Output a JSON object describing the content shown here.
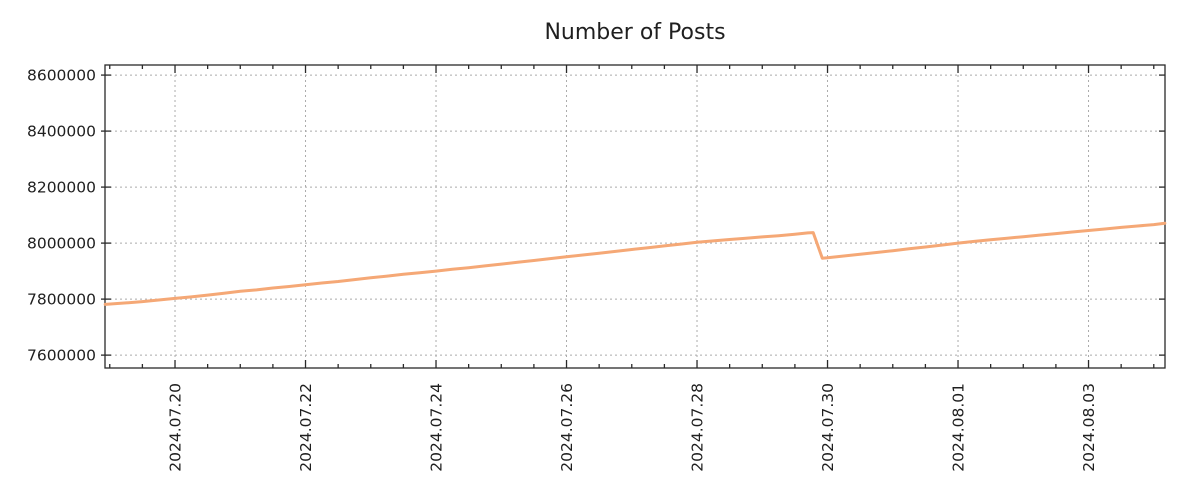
{
  "chart_data": {
    "type": "line",
    "title": "Number of Posts",
    "legend": "none",
    "grid": "dashed",
    "colors": {
      "line": "#f5a876",
      "grid": "#ababab",
      "axis": "#2a2a2a",
      "text": "#1f1f1f",
      "background": "#ffffff"
    },
    "axes": {
      "x": {
        "tick_labels": [
          "2024.07.20",
          "2024.07.22",
          "2024.07.24",
          "2024.07.26",
          "2024.07.28",
          "2024.07.30",
          "2024.08.01",
          "2024.08.03"
        ],
        "tick_day_index": [
          0,
          2,
          4,
          6,
          8,
          10,
          12,
          14
        ],
        "minor_tick_step_days": 0.5,
        "range_day_index": [
          -1.073,
          15.172
        ],
        "label_rotation_deg": -90
      },
      "y": {
        "tick_labels": [
          "7600000",
          "7800000",
          "8000000",
          "8200000",
          "8400000",
          "8600000"
        ],
        "tick_values": [
          7600000,
          7800000,
          8000000,
          8200000,
          8400000,
          8600000
        ],
        "range": [
          7554000,
          8636000
        ]
      }
    },
    "series": [
      {
        "name": "number-of-posts",
        "color": "#f5a876",
        "line_width": 3,
        "points": [
          [
            -1.07,
            7781000
          ],
          [
            -0.75,
            7786500
          ],
          [
            -0.5,
            7791000
          ],
          [
            -0.25,
            7797000
          ],
          [
            0,
            7802500
          ],
          [
            0.25,
            7808000
          ],
          [
            0.5,
            7814500
          ],
          [
            0.75,
            7821000
          ],
          [
            1,
            7828000
          ],
          [
            1.25,
            7833000
          ],
          [
            1.5,
            7839500
          ],
          [
            1.75,
            7845000
          ],
          [
            2,
            7851000
          ],
          [
            2.25,
            7857500
          ],
          [
            2.5,
            7863000
          ],
          [
            2.75,
            7869500
          ],
          [
            3,
            7876000
          ],
          [
            3.25,
            7882000
          ],
          [
            3.5,
            7888500
          ],
          [
            3.75,
            7894000
          ],
          [
            4,
            7900000
          ],
          [
            4.25,
            7906500
          ],
          [
            4.5,
            7912000
          ],
          [
            4.75,
            7918500
          ],
          [
            5,
            7925000
          ],
          [
            5.25,
            7931500
          ],
          [
            5.5,
            7938000
          ],
          [
            5.75,
            7944500
          ],
          [
            6,
            7951000
          ],
          [
            6.25,
            7957500
          ],
          [
            6.5,
            7964000
          ],
          [
            6.75,
            7970500
          ],
          [
            7,
            7977000
          ],
          [
            7.25,
            7983500
          ],
          [
            7.5,
            7990000
          ],
          [
            7.75,
            7996500
          ],
          [
            8,
            8003000
          ],
          [
            8.25,
            8008000
          ],
          [
            8.5,
            8013000
          ],
          [
            8.75,
            8017500
          ],
          [
            9,
            8022000
          ],
          [
            9.25,
            8026500
          ],
          [
            9.5,
            8031500
          ],
          [
            9.7,
            8036500
          ],
          [
            9.78,
            8037500
          ],
          [
            9.92,
            7946000
          ],
          [
            10,
            7948000
          ],
          [
            10.25,
            7954000
          ],
          [
            10.5,
            7960500
          ],
          [
            10.75,
            7966500
          ],
          [
            11,
            7973000
          ],
          [
            11.25,
            7979500
          ],
          [
            11.5,
            7986000
          ],
          [
            11.75,
            7993000
          ],
          [
            12,
            8000000
          ],
          [
            12.25,
            8006000
          ],
          [
            12.5,
            8012000
          ],
          [
            12.75,
            8017500
          ],
          [
            13,
            8023000
          ],
          [
            13.25,
            8028500
          ],
          [
            13.5,
            8034000
          ],
          [
            13.75,
            8039500
          ],
          [
            14,
            8045000
          ],
          [
            14.25,
            8050500
          ],
          [
            14.5,
            8056000
          ],
          [
            14.75,
            8061000
          ],
          [
            15,
            8066000
          ],
          [
            15.17,
            8071000
          ]
        ]
      }
    ]
  }
}
